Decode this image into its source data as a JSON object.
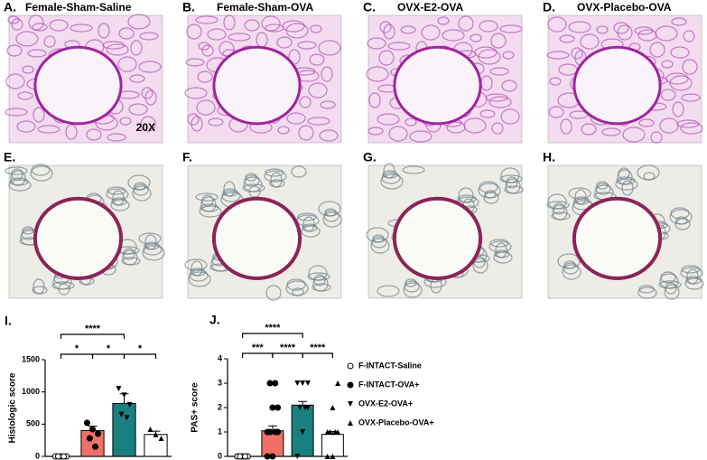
{
  "panels": [
    {
      "label": "A.",
      "title": "Female-Sham-Saline",
      "note": "20X"
    },
    {
      "label": "B.",
      "title": "Female-Sham-OVA"
    },
    {
      "label": "C.",
      "title": "OVX-E2-OVA"
    },
    {
      "label": "D.",
      "title": "OVX-Placebo-OVA"
    },
    {
      "label": "E."
    },
    {
      "label": "F."
    },
    {
      "label": "G."
    },
    {
      "label": "H."
    }
  ],
  "chart_data": [
    {
      "type": "bar",
      "label": "I.",
      "ylabel": "Histologic score",
      "ylim": [
        0,
        1500
      ],
      "yticks": [
        0,
        500,
        1000,
        1500
      ],
      "values": [
        0,
        400,
        820,
        340
      ],
      "errors": [
        0,
        70,
        150,
        50
      ],
      "colors": [
        "#ffffff",
        "#f07067",
        "#1a7f7f",
        "#ffffff"
      ],
      "markers": [
        "circle-open",
        "circle",
        "triangle-down",
        "triangle"
      ],
      "points": [
        [
          0,
          0,
          0,
          0,
          0
        ],
        [
          520,
          420,
          350,
          280,
          150
        ],
        [
          1050,
          950,
          800,
          650,
          600
        ],
        [
          420,
          340,
          280
        ]
      ],
      "annotations": [
        {
          "label": "****",
          "between": [
            0,
            2
          ]
        },
        {
          "label": "*",
          "between": [
            0,
            1
          ]
        },
        {
          "label": "*",
          "between": [
            1,
            2
          ]
        },
        {
          "label": "*",
          "between": [
            2,
            3
          ]
        }
      ]
    },
    {
      "type": "bar",
      "label": "J.",
      "ylabel": "PAS+ score",
      "ylim": [
        0,
        4
      ],
      "yticks": [
        0,
        1,
        2,
        3,
        4
      ],
      "values": [
        0,
        1.05,
        2.1,
        0.9
      ],
      "errors": [
        0,
        0.2,
        0.15,
        0.12
      ],
      "colors": [
        "#ffffff",
        "#f07067",
        "#1a7f7f",
        "#ffffff"
      ],
      "markers": [
        "circle-open",
        "circle",
        "triangle-down",
        "triangle"
      ],
      "points": [
        [
          0,
          0,
          0,
          0,
          0
        ],
        [
          0,
          0,
          1,
          1,
          1,
          1,
          2,
          2,
          3,
          3
        ],
        [
          0,
          1,
          2,
          2,
          2,
          3,
          3,
          3
        ],
        [
          0,
          0,
          1,
          1,
          1,
          1,
          2,
          3
        ]
      ],
      "annotations": [
        {
          "label": "****",
          "between": [
            0,
            2
          ]
        },
        {
          "label": "***",
          "between": [
            0,
            1
          ]
        },
        {
          "label": "****",
          "between": [
            1,
            2
          ]
        },
        {
          "label": "****",
          "between": [
            2,
            3
          ]
        }
      ],
      "legend": [
        "F-INTACT-Saline",
        "F-INTACT-OVA+",
        "OVX-E2-OVA+",
        "OVX-Placebo-OVA+"
      ]
    }
  ]
}
